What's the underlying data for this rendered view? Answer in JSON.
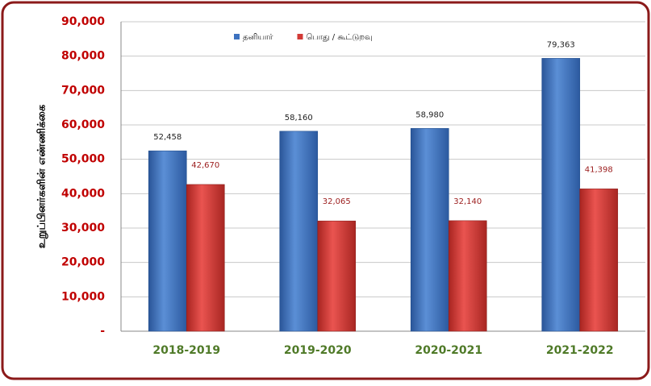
{
  "chart_data": {
    "type": "bar",
    "y_label": "உறுப்பினர்களின் எண்ணிக்கை",
    "categories": [
      "2018-2019",
      "2019-2020",
      "2020-2021",
      "2021-2022"
    ],
    "series": [
      {
        "name": "தனியார்",
        "color": "#3d72c0",
        "values": [
          52458,
          58160,
          58980,
          79363
        ],
        "value_labels": [
          "52,458",
          "58,160",
          "58,980",
          "79,363"
        ]
      },
      {
        "name": "பொது / கூட்டுறவு",
        "color": "#d23a36",
        "values": [
          42670,
          32065,
          32140,
          41398
        ],
        "value_labels": [
          "42,670",
          "32,065",
          "32,140",
          "41,398"
        ]
      }
    ],
    "ylim": [
      0,
      90000
    ],
    "yticks": [
      {
        "value": 0,
        "label": "-"
      },
      {
        "value": 10000,
        "label": "10,000"
      },
      {
        "value": 20000,
        "label": "20,000"
      },
      {
        "value": 30000,
        "label": "30,000"
      },
      {
        "value": 40000,
        "label": "40,000"
      },
      {
        "value": 50000,
        "label": "50,000"
      },
      {
        "value": 60000,
        "label": "60,000"
      },
      {
        "value": 70000,
        "label": "70,000"
      },
      {
        "value": 80000,
        "label": "80,000"
      },
      {
        "value": 90000,
        "label": "90,000"
      }
    ],
    "grid": true,
    "legend": "top"
  }
}
